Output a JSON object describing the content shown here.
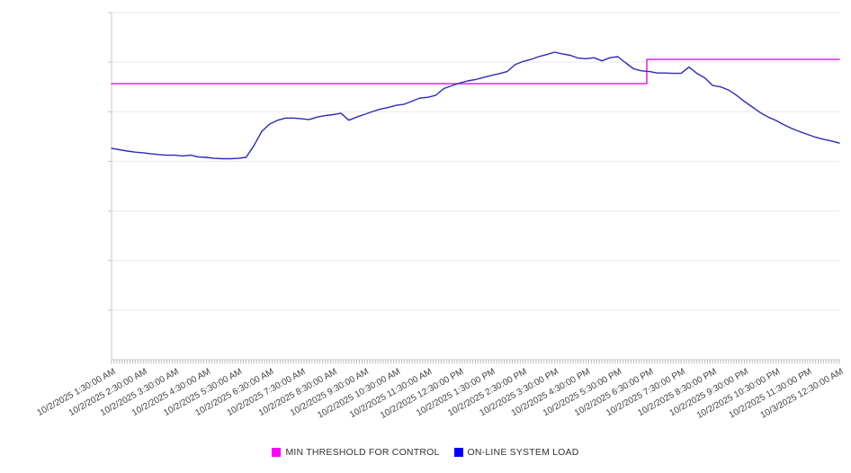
{
  "legend": {
    "items": [
      {
        "label": "MIN THRESHOLD FOR CONTROL",
        "marker_color": "#FF00FF"
      },
      {
        "label": "ON-LINE SYSTEM LOAD",
        "marker_color": "#0000FF"
      }
    ]
  },
  "chart_data": {
    "type": "line",
    "title": "",
    "xlabel": "",
    "ylabel": "",
    "grid": "horizontal",
    "legend_position": "bottom-center",
    "x_axis": {
      "total_minutes": 1380,
      "major_tick_interval_minutes": 60,
      "minor_tick_interval_minutes": 5,
      "tick_labels": [
        "10/2/2025 1:30:00 AM",
        "10/2/2025 2:30:00 AM",
        "10/2/2025 3:30:00 AM",
        "10/2/2025 4:30:00 AM",
        "10/2/2025 5:30:00 AM",
        "10/2/2025 6:30:00 AM",
        "10/2/2025 7:30:00 AM",
        "10/2/2025 8:30:00 AM",
        "10/2/2025 9:30:00 AM",
        "10/2/2025 10:30:00 AM",
        "10/2/2025 11:30:00 AM",
        "10/2/2025 12:30:00 PM",
        "10/2/2025 1:30:00 PM",
        "10/2/2025 2:30:00 PM",
        "10/2/2025 3:30:00 PM",
        "10/2/2025 4:30:00 PM",
        "10/2/2025 5:30:00 PM",
        "10/2/2025 6:30:00 PM",
        "10/2/2025 7:30:00 PM",
        "10/2/2025 8:30:00 PM",
        "10/2/2025 9:30:00 PM",
        "10/2/2025 10:30:00 PM",
        "10/2/2025 11:30:00 PM",
        "10/3/2025 12:30:00 AM"
      ]
    },
    "y_axis": {
      "tick_labels": [],
      "note": "no y-axis labels visible; values normalized 0-100 of plot height",
      "ylim": [
        0,
        100
      ],
      "gridline_divisions": 7
    },
    "series": [
      {
        "name": "MIN THRESHOLD FOR CONTROL",
        "type": "step",
        "line_color": "#E012D4",
        "points": [
          [
            0,
            79.5
          ],
          [
            1015,
            79.5
          ],
          [
            1015,
            86.5
          ],
          [
            1380,
            86.5
          ]
        ]
      },
      {
        "name": "ON-LINE SYSTEM LOAD",
        "type": "line",
        "line_color": "#2B2BB8",
        "points": [
          [
            0,
            60.9
          ],
          [
            15,
            60.5
          ],
          [
            30,
            60.1
          ],
          [
            45,
            59.8
          ],
          [
            60,
            59.6
          ],
          [
            75,
            59.3
          ],
          [
            90,
            59.1
          ],
          [
            105,
            58.9
          ],
          [
            120,
            58.9
          ],
          [
            135,
            58.7
          ],
          [
            150,
            58.9
          ],
          [
            165,
            58.4
          ],
          [
            180,
            58.3
          ],
          [
            195,
            58.0
          ],
          [
            210,
            57.9
          ],
          [
            225,
            57.9
          ],
          [
            240,
            58.0
          ],
          [
            255,
            58.3
          ],
          [
            270,
            61.7
          ],
          [
            285,
            65.8
          ],
          [
            300,
            67.9
          ],
          [
            315,
            69.0
          ],
          [
            330,
            69.6
          ],
          [
            345,
            69.6
          ],
          [
            360,
            69.4
          ],
          [
            375,
            69.2
          ],
          [
            390,
            69.9
          ],
          [
            405,
            70.3
          ],
          [
            420,
            70.6
          ],
          [
            435,
            71.0
          ],
          [
            450,
            69.0
          ],
          [
            465,
            69.9
          ],
          [
            480,
            70.7
          ],
          [
            495,
            71.5
          ],
          [
            510,
            72.2
          ],
          [
            525,
            72.7
          ],
          [
            540,
            73.3
          ],
          [
            555,
            73.6
          ],
          [
            570,
            74.5
          ],
          [
            585,
            75.4
          ],
          [
            600,
            75.6
          ],
          [
            615,
            76.2
          ],
          [
            630,
            78.1
          ],
          [
            645,
            78.9
          ],
          [
            660,
            79.7
          ],
          [
            675,
            80.3
          ],
          [
            690,
            80.7
          ],
          [
            705,
            81.3
          ],
          [
            720,
            81.9
          ],
          [
            735,
            82.4
          ],
          [
            750,
            83.0
          ],
          [
            765,
            85.0
          ],
          [
            780,
            85.9
          ],
          [
            795,
            86.5
          ],
          [
            810,
            87.3
          ],
          [
            825,
            87.9
          ],
          [
            840,
            88.6
          ],
          [
            855,
            88.1
          ],
          [
            870,
            87.7
          ],
          [
            885,
            86.9
          ],
          [
            900,
            86.7
          ],
          [
            915,
            87.0
          ],
          [
            930,
            86.1
          ],
          [
            945,
            87.0
          ],
          [
            960,
            87.3
          ],
          [
            975,
            85.5
          ],
          [
            990,
            83.8
          ],
          [
            1005,
            83.2
          ],
          [
            1020,
            83.0
          ],
          [
            1035,
            82.6
          ],
          [
            1050,
            82.6
          ],
          [
            1065,
            82.5
          ],
          [
            1080,
            82.5
          ],
          [
            1095,
            84.3
          ],
          [
            1110,
            82.5
          ],
          [
            1125,
            81.2
          ],
          [
            1140,
            79.0
          ],
          [
            1155,
            78.6
          ],
          [
            1170,
            77.7
          ],
          [
            1185,
            76.2
          ],
          [
            1200,
            74.4
          ],
          [
            1215,
            72.8
          ],
          [
            1230,
            71.2
          ],
          [
            1245,
            69.9
          ],
          [
            1260,
            68.9
          ],
          [
            1275,
            67.7
          ],
          [
            1290,
            66.6
          ],
          [
            1305,
            65.7
          ],
          [
            1320,
            64.9
          ],
          [
            1335,
            64.1
          ],
          [
            1350,
            63.5
          ],
          [
            1365,
            63.0
          ],
          [
            1380,
            62.4
          ]
        ]
      }
    ]
  }
}
